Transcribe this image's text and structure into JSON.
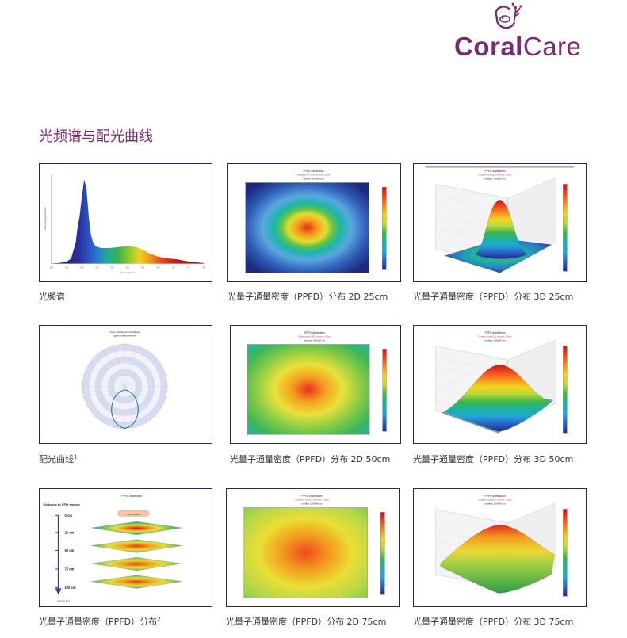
{
  "brand": {
    "part1": "Coral",
    "part2": "Care",
    "color": "#7a2a73",
    "icon": "coral-fish-logo-icon"
  },
  "section": {
    "title": "光频谱与配光曲线"
  },
  "figures": [
    {
      "caption": "光频谱",
      "type": "spectrum",
      "ylabel": "Relative spectral distribution",
      "xlabel": "Wavelength (nm)",
      "xticks": [
        "380",
        "400",
        "420",
        "440",
        "460",
        "480",
        "500",
        "520",
        "540",
        "560",
        "580",
        "600",
        "620",
        "640",
        "660",
        "680",
        "700",
        "720",
        "740",
        "760",
        "780"
      ]
    },
    {
      "caption": "光量子通量密度（PPFD）分布  2D 25cm",
      "type": "ppfd2d",
      "title": "PPFD distribution",
      "subtitle": "Distance to LED source: 25cm",
      "surface": "surface 100x80 cm"
    },
    {
      "caption": "光量子通量密度（PPFD）分布  3D 25cm",
      "type": "ppfd3d",
      "title": "PPFD distribution",
      "subtitle": "Distance to LED source: 25cm",
      "surface": "surface 100x80 cm"
    },
    {
      "caption": "配光曲线",
      "caption_sup": "1",
      "type": "polar",
      "title": "Light distribution CoralCare",
      "subtitle": "gonio measurement"
    },
    {
      "caption": "光量子通量密度（PPFD）分布  2D 50cm",
      "type": "ppfd2d",
      "title": "PPFD distribution",
      "subtitle": "Distance to LED source: 50cm",
      "surface": "surface 100x80 cm"
    },
    {
      "caption": "光量子通量密度（PPFD）分布  3D 50cm",
      "type": "ppfd3d",
      "title": "PPFD distribution",
      "subtitle": "Distance to LED source: 50cm",
      "surface": "surface 100x80 cm"
    },
    {
      "caption": "光量子通量密度（PPFD）分布",
      "caption_sup": "2",
      "type": "stack",
      "title": "PPFD distribution",
      "ylabel": "Distance to LED source",
      "source_label": "Light source",
      "levels": [
        "0 cm",
        "25 cm",
        "50 cm",
        "75 cm",
        "100 cm"
      ],
      "footer": "LightTools 8.4.0"
    },
    {
      "caption": "光量子通量密度（PPFD）分布  2D 75cm",
      "type": "ppfd2d",
      "title": "PPFD distribution",
      "subtitle": "Distance to LED source: 75cm",
      "surface": "surface 100x80 cm"
    },
    {
      "caption": "光量子通量密度（PPFD）分布  3D 75cm",
      "type": "ppfd3d",
      "title": "PPFD distribution",
      "subtitle": "Distance to LED source: 75cm",
      "surface": "surface 100x80 cm"
    }
  ]
}
